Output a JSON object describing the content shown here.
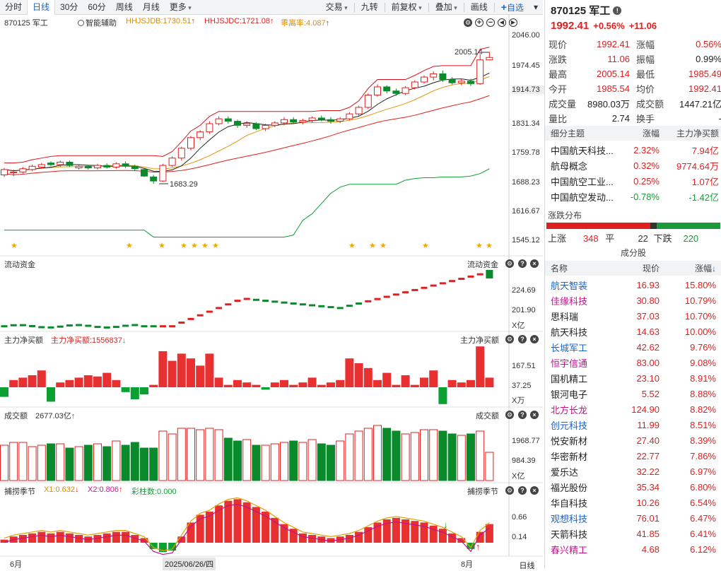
{
  "toolbar": {
    "items": [
      "分时",
      "日线",
      "30分",
      "60分",
      "周线",
      "月线",
      "更多"
    ],
    "active": "日线",
    "right_items": [
      "交易",
      "九转",
      "前复权",
      "叠加",
      "画线"
    ],
    "add_label": "自选"
  },
  "chart": {
    "symbol_label": "870125 军工",
    "assist_label": "智能辅助",
    "ind1": "HHJSJDB:1730.51",
    "ind2": "HHJSJDC:1721.08",
    "ind3": "乖离率:4.087",
    "high_annot": "2005.14",
    "low_annot": "1683.29",
    "y_ticks": [
      "2046.00",
      "1974.45",
      "1914.73",
      "1831.34",
      "1759.78",
      "1688.23",
      "1616.67",
      "1545.12"
    ],
    "flow_title": "流动资金",
    "flow_ticks": [
      "224.69",
      "201.90"
    ],
    "flow_unit": "X亿",
    "net_title": "主力净买额",
    "net_ind": "主力净买额:1556837",
    "net_ticks": [
      "167.51",
      "37.25"
    ],
    "net_unit": "X万",
    "vol_title": "成交额",
    "vol_ind": "2677.03亿",
    "vol_ticks": [
      "1968.77",
      "984.39"
    ],
    "vol_unit": "X亿",
    "season_title": "捕捞季节",
    "season_x1": "X1:0.632",
    "season_x2": "X2:0.806",
    "season_col": "彩柱数:0.000",
    "season_ticks": [
      "0.66",
      "0.14"
    ],
    "x_labels": {
      "left": "6月",
      "mid": "2025/06/26/四",
      "right": "8月"
    },
    "day_label": "日线"
  },
  "chart_data": {
    "type": "candlestick",
    "title": "870125 军工",
    "ylim": [
      1545.12,
      2046.0
    ],
    "candles": [
      [
        1705,
        1718,
        1700,
        1722
      ],
      [
        1710,
        1712,
        1702,
        1718
      ],
      [
        1712,
        1720,
        1708,
        1724
      ],
      [
        1718,
        1726,
        1714,
        1730
      ],
      [
        1724,
        1730,
        1720,
        1734
      ],
      [
        1734,
        1730,
        1726,
        1738
      ],
      [
        1730,
        1736,
        1725,
        1740
      ],
      [
        1736,
        1728,
        1724,
        1740
      ],
      [
        1722,
        1726,
        1718,
        1730
      ],
      [
        1726,
        1722,
        1718,
        1730
      ],
      [
        1722,
        1728,
        1718,
        1732
      ],
      [
        1728,
        1724,
        1720,
        1733
      ],
      [
        1724,
        1732,
        1720,
        1736
      ],
      [
        1732,
        1726,
        1722,
        1738
      ],
      [
        1726,
        1720,
        1714,
        1730
      ],
      [
        1718,
        1702,
        1700,
        1720
      ],
      [
        1700,
        1690,
        1683,
        1705
      ],
      [
        1690,
        1728,
        1688,
        1732
      ],
      [
        1728,
        1746,
        1724,
        1750
      ],
      [
        1746,
        1770,
        1740,
        1774
      ],
      [
        1770,
        1796,
        1765,
        1800
      ],
      [
        1796,
        1810,
        1790,
        1814
      ],
      [
        1810,
        1830,
        1805,
        1836
      ],
      [
        1830,
        1842,
        1826,
        1848
      ],
      [
        1842,
        1836,
        1830,
        1848
      ],
      [
        1836,
        1826,
        1820,
        1840
      ],
      [
        1826,
        1830,
        1820,
        1836
      ],
      [
        1830,
        1818,
        1814,
        1834
      ],
      [
        1818,
        1826,
        1812,
        1830
      ],
      [
        1826,
        1832,
        1822,
        1836
      ],
      [
        1832,
        1840,
        1826,
        1846
      ],
      [
        1840,
        1834,
        1830,
        1846
      ],
      [
        1834,
        1838,
        1828,
        1842
      ],
      [
        1838,
        1844,
        1832,
        1848
      ],
      [
        1844,
        1840,
        1836,
        1850
      ],
      [
        1840,
        1836,
        1830,
        1846
      ],
      [
        1836,
        1842,
        1832,
        1846
      ],
      [
        1842,
        1854,
        1838,
        1858
      ],
      [
        1854,
        1870,
        1850,
        1874
      ],
      [
        1870,
        1900,
        1866,
        1904
      ],
      [
        1900,
        1920,
        1896,
        1926
      ],
      [
        1920,
        1910,
        1904,
        1924
      ],
      [
        1910,
        1904,
        1898,
        1916
      ],
      [
        1904,
        1918,
        1900,
        1922
      ],
      [
        1918,
        1932,
        1914,
        1936
      ],
      [
        1932,
        1944,
        1928,
        1948
      ],
      [
        1944,
        1952,
        1936,
        1958
      ],
      [
        1952,
        1938,
        1932,
        1960
      ],
      [
        1938,
        1930,
        1926,
        1944
      ],
      [
        1930,
        1934,
        1924,
        1940
      ],
      [
        1934,
        1928,
        1922,
        1940
      ],
      [
        1928,
        1986,
        1925,
        2000
      ],
      [
        1986,
        1992,
        1985,
        2005
      ]
    ],
    "components": [
      {
        "name": "航天智装",
        "price": "16.93",
        "change": "15.80%"
      },
      {
        "name": "佳缘科技",
        "price": "30.80",
        "change": "10.79%"
      },
      {
        "name": "思科瑞",
        "price": "37.03",
        "change": "10.70%"
      },
      {
        "name": "航天科技",
        "price": "14.63",
        "change": "10.00%"
      },
      {
        "name": "长城军工",
        "price": "42.62",
        "change": "9.76%"
      },
      {
        "name": "恒宇信通",
        "price": "83.00",
        "change": "9.08%"
      },
      {
        "name": "国机精工",
        "price": "23.10",
        "change": "8.91%"
      },
      {
        "name": "银河电子",
        "price": "5.52",
        "change": "8.88%"
      },
      {
        "name": "北方长龙",
        "price": "124.90",
        "change": "8.82%"
      },
      {
        "name": "创元科技",
        "price": "11.99",
        "change": "8.51%"
      },
      {
        "name": "悦安新材",
        "price": "27.40",
        "change": "8.39%"
      },
      {
        "name": "华密新材",
        "price": "22.77",
        "change": "7.86%"
      },
      {
        "name": "爱乐达",
        "price": "32.22",
        "change": "6.97%"
      },
      {
        "name": "福光股份",
        "price": "35.34",
        "change": "6.80%"
      },
      {
        "name": "华自科技",
        "price": "10.26",
        "change": "6.54%"
      },
      {
        "name": "观想科技",
        "price": "76.01",
        "change": "6.47%"
      },
      {
        "name": "天箭科技",
        "price": "41.85",
        "change": "6.41%"
      },
      {
        "name": "春兴精工",
        "price": "4.68",
        "change": "6.12%"
      }
    ]
  },
  "quote": {
    "header": "870125 军工",
    "price": "1992.41",
    "pct": "+0.56%",
    "chg": "+11.06",
    "rows": [
      {
        "k": "现价",
        "v": "1992.41",
        "vc": "red",
        "k2": "涨幅",
        "v2": "0.56%",
        "v2c": "red"
      },
      {
        "k": "涨跌",
        "v": "11.06",
        "vc": "red",
        "k2": "振幅",
        "v2": "0.99%",
        "v2c": "blk"
      },
      {
        "k": "最高",
        "v": "2005.14",
        "vc": "red",
        "k2": "最低",
        "v2": "1985.49",
        "v2c": "red"
      },
      {
        "k": "今开",
        "v": "1985.54",
        "vc": "red",
        "k2": "均价",
        "v2": "1992.41",
        "v2c": "red"
      },
      {
        "k": "成交量",
        "v": "8980.03万",
        "vc": "blk",
        "k2": "成交额",
        "v2": "1447.21亿",
        "v2c": "blk"
      },
      {
        "k": "量比",
        "v": "2.74",
        "vc": "blk",
        "k2": "换手",
        "v2": "-",
        "v2c": "blk"
      }
    ]
  },
  "themes": {
    "headers": [
      "细分主题",
      "涨幅",
      "主力净买额"
    ],
    "rows": [
      {
        "name": "中国航天科技...",
        "pct": "2.32%",
        "pc": "red",
        "net": "7.94亿",
        "nc": "red"
      },
      {
        "name": "航母概念",
        "pct": "0.32%",
        "pc": "red",
        "net": "9774.64万",
        "nc": "red"
      },
      {
        "name": "中国航空工业...",
        "pct": "0.25%",
        "pc": "red",
        "net": "1.07亿",
        "nc": "red"
      },
      {
        "name": "中国航空发动...",
        "pct": "-0.78%",
        "pc": "green",
        "net": "-1.42亿",
        "nc": "green"
      }
    ]
  },
  "dist": {
    "title": "涨跌分布",
    "up_label": "上涨",
    "up": "348",
    "flat_label": "平",
    "flat": "22",
    "down_label": "下跌",
    "down": "220"
  },
  "comp": {
    "title": "成分股",
    "headers": [
      "名称",
      "现价",
      "涨幅"
    ]
  }
}
